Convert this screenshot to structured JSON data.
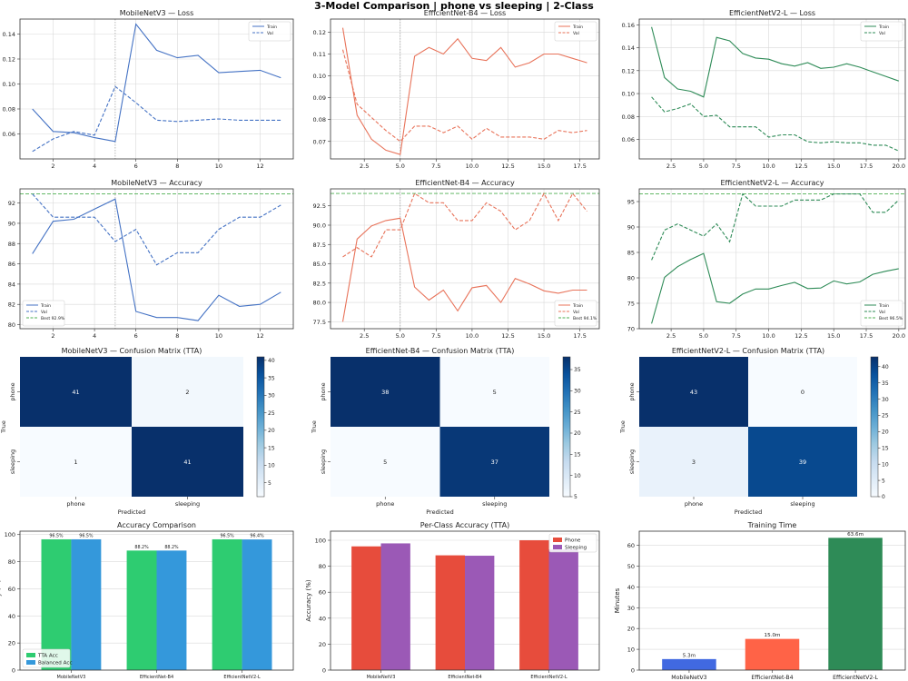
{
  "suptitle": "3-Model Comparison  |  phone vs sleeping  |  2-Class",
  "colors": {
    "mobilenet": "#4472c4",
    "efficientnet_b4": "#e8735a",
    "efficientnetv2_l": "#2e8b57",
    "best_line": "#4caf50",
    "tta_acc": "#2ecc71",
    "balanced_acc": "#3498db",
    "phone": "#e74c3c",
    "sleeping": "#9b59b6",
    "time_mobilenet": "#4169e1",
    "time_b4": "#ff6347",
    "time_v2l": "#2e8b57"
  },
  "chart_data": [
    {
      "id": "mnv3-loss",
      "type": "line",
      "title": "MobileNetV3 — Loss",
      "xlim": [
        0.4,
        13.6
      ],
      "ylim": [
        0.04,
        0.152
      ],
      "xticks": [
        2,
        4,
        6,
        8,
        10,
        12
      ],
      "yticks": [
        0.06,
        0.08,
        0.1,
        0.12,
        0.14
      ],
      "xtick_labels": [
        "2",
        "4",
        "6",
        "8",
        "10",
        "12"
      ],
      "ytick_labels": [
        "0.06",
        "0.08",
        "0.10",
        "0.12",
        "0.14"
      ],
      "vline": 5,
      "legend_position": "upper right",
      "series": [
        {
          "name": "Train",
          "style": "solid",
          "x": [
            1,
            2,
            3,
            4,
            5,
            6,
            7,
            8,
            9,
            10,
            11,
            12,
            13
          ],
          "values": [
            0.08,
            0.062,
            0.061,
            0.057,
            0.054,
            0.148,
            0.127,
            0.121,
            0.123,
            0.109,
            0.11,
            0.111,
            0.105
          ]
        },
        {
          "name": "Val",
          "style": "dashed",
          "x": [
            1,
            2,
            3,
            4,
            5,
            6,
            7,
            8,
            9,
            10,
            11,
            12,
            13
          ],
          "values": [
            0.046,
            0.056,
            0.062,
            0.059,
            0.098,
            0.085,
            0.071,
            0.07,
            0.071,
            0.072,
            0.071,
            0.071,
            0.071
          ]
        }
      ]
    },
    {
      "id": "b4-loss",
      "type": "line",
      "title": "EfficientNet-B4 — Loss",
      "xlim": [
        0.15,
        18.85
      ],
      "ylim": [
        0.062,
        0.126
      ],
      "xticks": [
        2.5,
        5.0,
        7.5,
        10.0,
        12.5,
        15.0,
        17.5
      ],
      "yticks": [
        0.07,
        0.08,
        0.09,
        0.1,
        0.11,
        0.12
      ],
      "xtick_labels": [
        "2.5",
        "5.0",
        "7.5",
        "10.0",
        "12.5",
        "15.0",
        "17.5"
      ],
      "ytick_labels": [
        "0.07",
        "0.08",
        "0.09",
        "0.10",
        "0.11",
        "0.12"
      ],
      "vline": 5,
      "legend_position": "upper right",
      "series": [
        {
          "name": "Train",
          "style": "solid",
          "x": [
            1,
            2,
            3,
            4,
            5,
            6,
            7,
            8,
            9,
            10,
            11,
            12,
            13,
            14,
            15,
            16,
            17,
            18
          ],
          "values": [
            0.122,
            0.082,
            0.071,
            0.066,
            0.064,
            0.109,
            0.113,
            0.11,
            0.117,
            0.108,
            0.107,
            0.113,
            0.104,
            0.106,
            0.11,
            0.11,
            0.108,
            0.106
          ]
        },
        {
          "name": "Val",
          "style": "dashed",
          "x": [
            1,
            2,
            3,
            4,
            5,
            6,
            7,
            8,
            9,
            10,
            11,
            12,
            13,
            14,
            15,
            16,
            17,
            18
          ],
          "values": [
            0.112,
            0.087,
            0.081,
            0.075,
            0.07,
            0.077,
            0.077,
            0.074,
            0.077,
            0.071,
            0.076,
            0.072,
            0.072,
            0.072,
            0.071,
            0.075,
            0.074,
            0.075
          ]
        }
      ]
    },
    {
      "id": "v2l-loss",
      "type": "line",
      "title": "EfficientNetV2-L — Loss",
      "xlim": [
        0.05,
        20.5
      ],
      "ylim": [
        0.043,
        0.165
      ],
      "xticks": [
        2.5,
        5.0,
        7.5,
        10.0,
        12.5,
        15.0,
        17.5,
        20.0
      ],
      "yticks": [
        0.06,
        0.08,
        0.1,
        0.12,
        0.14,
        0.16
      ],
      "xtick_labels": [
        "2.5",
        "5.0",
        "7.5",
        "10.0",
        "12.5",
        "15.0",
        "17.5",
        "20.0"
      ],
      "ytick_labels": [
        "0.06",
        "0.08",
        "0.10",
        "0.12",
        "0.14",
        "0.16"
      ],
      "vline": null,
      "legend_position": "upper right",
      "series": [
        {
          "name": "Train",
          "style": "solid",
          "x": [
            1,
            2,
            3,
            4,
            5,
            6,
            7,
            8,
            9,
            10,
            11,
            12,
            13,
            14,
            15,
            16,
            17,
            18,
            19,
            20
          ],
          "values": [
            0.158,
            0.114,
            0.104,
            0.102,
            0.097,
            0.149,
            0.146,
            0.135,
            0.131,
            0.13,
            0.126,
            0.124,
            0.127,
            0.122,
            0.123,
            0.126,
            0.123,
            0.119,
            0.115,
            0.111
          ]
        },
        {
          "name": "Val",
          "style": "dashed",
          "x": [
            1,
            2,
            3,
            4,
            5,
            6,
            7,
            8,
            9,
            10,
            11,
            12,
            13,
            14,
            15,
            16,
            17,
            18,
            19,
            20
          ],
          "values": [
            0.097,
            0.084,
            0.087,
            0.091,
            0.08,
            0.081,
            0.071,
            0.071,
            0.071,
            0.062,
            0.064,
            0.064,
            0.058,
            0.057,
            0.058,
            0.057,
            0.057,
            0.055,
            0.055,
            0.05
          ]
        }
      ]
    },
    {
      "id": "mnv3-acc",
      "type": "line",
      "title": "MobileNetV3 — Accuracy",
      "xlim": [
        0.4,
        13.6
      ],
      "ylim": [
        79.6,
        93.4
      ],
      "xticks": [
        2,
        4,
        6,
        8,
        10,
        12
      ],
      "yticks": [
        80,
        82,
        84,
        86,
        88,
        90,
        92
      ],
      "xtick_labels": [
        "2",
        "4",
        "6",
        "8",
        "10",
        "12"
      ],
      "ytick_labels": [
        "80",
        "82",
        "84",
        "86",
        "88",
        "90",
        "92"
      ],
      "vline": 5,
      "best": 92.9,
      "legend_position": "lower left",
      "series": [
        {
          "name": "Train",
          "style": "solid",
          "x": [
            1,
            2,
            3,
            4,
            5,
            6,
            7,
            8,
            9,
            10,
            11,
            12,
            13
          ],
          "values": [
            87.0,
            90.2,
            90.4,
            91.4,
            92.4,
            81.3,
            80.7,
            80.7,
            80.4,
            82.9,
            81.8,
            82.0,
            83.2
          ]
        },
        {
          "name": "Val",
          "style": "dashed",
          "x": [
            1,
            2,
            3,
            4,
            5,
            6,
            7,
            8,
            9,
            10,
            11,
            12,
            13
          ],
          "values": [
            92.9,
            90.6,
            90.6,
            90.6,
            88.2,
            89.4,
            85.9,
            87.1,
            87.1,
            89.4,
            90.6,
            90.6,
            91.8
          ]
        },
        {
          "name": "Best 92.9%",
          "style": "best"
        }
      ]
    },
    {
      "id": "b4-acc",
      "type": "line",
      "title": "EfficientNet-B4 — Accuracy",
      "xlim": [
        0.15,
        18.85
      ],
      "ylim": [
        76.6,
        94.7
      ],
      "xticks": [
        2.5,
        5.0,
        7.5,
        10.0,
        12.5,
        15.0,
        17.5
      ],
      "yticks": [
        77.5,
        80.0,
        82.5,
        85.0,
        87.5,
        90.0,
        92.5
      ],
      "xtick_labels": [
        "2.5",
        "5.0",
        "7.5",
        "10.0",
        "12.5",
        "15.0",
        "17.5"
      ],
      "ytick_labels": [
        "77.5",
        "80.0",
        "82.5",
        "85.0",
        "87.5",
        "90.0",
        "92.5"
      ],
      "vline": 5,
      "best": 94.1,
      "legend_position": "lower right",
      "series": [
        {
          "name": "Train",
          "style": "solid",
          "x": [
            1,
            2,
            3,
            4,
            5,
            6,
            7,
            8,
            9,
            10,
            11,
            12,
            13,
            14,
            15,
            16,
            17,
            18
          ],
          "values": [
            77.5,
            88.2,
            89.9,
            90.6,
            90.9,
            82.0,
            80.3,
            81.6,
            78.9,
            81.9,
            82.2,
            80.0,
            83.1,
            82.4,
            81.5,
            81.2,
            81.6,
            81.6
          ]
        },
        {
          "name": "Val",
          "style": "dashed",
          "x": [
            1,
            2,
            3,
            4,
            5,
            6,
            7,
            8,
            9,
            10,
            11,
            12,
            13,
            14,
            15,
            16,
            17,
            18
          ],
          "values": [
            85.9,
            87.1,
            85.9,
            89.4,
            89.4,
            94.1,
            92.9,
            92.9,
            90.6,
            90.6,
            92.9,
            91.8,
            89.4,
            90.6,
            94.1,
            90.6,
            94.1,
            91.8
          ]
        },
        {
          "name": "Best 94.1%",
          "style": "best"
        }
      ]
    },
    {
      "id": "v2l-acc",
      "type": "line",
      "title": "EfficientNetV2-L — Accuracy",
      "xlim": [
        0.05,
        20.5
      ],
      "ylim": [
        70.0,
        97.5
      ],
      "xticks": [
        2.5,
        5.0,
        7.5,
        10.0,
        12.5,
        15.0,
        17.5,
        20.0
      ],
      "yticks": [
        70,
        75,
        80,
        85,
        90,
        95
      ],
      "xtick_labels": [
        "2.5",
        "5.0",
        "7.5",
        "10.0",
        "12.5",
        "15.0",
        "17.5",
        "20.0"
      ],
      "ytick_labels": [
        "70",
        "75",
        "80",
        "85",
        "90",
        "95"
      ],
      "vline": null,
      "best": 96.5,
      "legend_position": "lower right",
      "series": [
        {
          "name": "Train",
          "style": "solid",
          "x": [
            1,
            2,
            3,
            4,
            5,
            6,
            7,
            8,
            9,
            10,
            11,
            12,
            13,
            14,
            15,
            16,
            17,
            18,
            19,
            20
          ],
          "values": [
            71.0,
            80.1,
            82.2,
            83.6,
            84.8,
            75.3,
            75.0,
            76.8,
            77.8,
            77.8,
            78.5,
            79.1,
            77.9,
            78.0,
            79.4,
            78.8,
            79.2,
            80.7,
            81.3,
            81.8
          ]
        },
        {
          "name": "Val",
          "style": "dashed",
          "x": [
            1,
            2,
            3,
            4,
            5,
            6,
            7,
            8,
            9,
            10,
            11,
            12,
            13,
            14,
            15,
            16,
            17,
            18,
            19,
            20
          ],
          "values": [
            83.5,
            89.4,
            90.6,
            89.4,
            88.2,
            90.6,
            87.1,
            96.5,
            94.1,
            94.1,
            94.1,
            95.3,
            95.3,
            95.3,
            96.5,
            96.5,
            96.5,
            92.9,
            92.9,
            95.3
          ]
        },
        {
          "name": "Best 96.5%",
          "style": "best"
        }
      ]
    },
    {
      "id": "mnv3-cm",
      "type": "heatmap",
      "title": "MobileNetV3 — Confusion Matrix (TTA)",
      "xlabel": "Predicted",
      "ylabel": "True",
      "row_labels": [
        "phone",
        "sleeping"
      ],
      "col_labels": [
        "phone",
        "sleeping"
      ],
      "values": [
        [
          41,
          2
        ],
        [
          1,
          41
        ]
      ],
      "vmin": 1,
      "vmax": 41,
      "cbar_ticks": [
        5,
        10,
        15,
        20,
        25,
        30,
        35,
        40
      ],
      "cbar_tick_labels": [
        "5",
        "10",
        "15",
        "20",
        "25",
        "30",
        "35",
        "40"
      ]
    },
    {
      "id": "b4-cm",
      "type": "heatmap",
      "title": "EfficientNet-B4 — Confusion Matrix (TTA)",
      "xlabel": "Predicted",
      "ylabel": "True",
      "row_labels": [
        "phone",
        "sleeping"
      ],
      "col_labels": [
        "phone",
        "sleeping"
      ],
      "values": [
        [
          38,
          5
        ],
        [
          5,
          37
        ]
      ],
      "vmin": 5,
      "vmax": 38,
      "cbar_ticks": [
        5,
        10,
        15,
        20,
        25,
        30,
        35
      ],
      "cbar_tick_labels": [
        "5",
        "10",
        "15",
        "20",
        "25",
        "30",
        "35"
      ]
    },
    {
      "id": "v2l-cm",
      "type": "heatmap",
      "title": "EfficientNetV2-L — Confusion Matrix (TTA)",
      "xlabel": "Predicted",
      "ylabel": "True",
      "row_labels": [
        "phone",
        "sleeping"
      ],
      "col_labels": [
        "phone",
        "sleeping"
      ],
      "values": [
        [
          43,
          0
        ],
        [
          3,
          39
        ]
      ],
      "vmin": 0,
      "vmax": 43,
      "cbar_ticks": [
        0,
        5,
        10,
        15,
        20,
        25,
        30,
        35,
        40
      ],
      "cbar_tick_labels": [
        "0",
        "5",
        "10",
        "15",
        "20",
        "25",
        "30",
        "35",
        "40"
      ]
    },
    {
      "id": "acc-comp",
      "type": "bar",
      "title": "Accuracy Comparison",
      "ylabel": "Accuracy (%)",
      "ylim": [
        0,
        102.5
      ],
      "yticks": [
        0,
        20,
        40,
        60,
        80,
        100
      ],
      "ytick_labels": [
        "0",
        "20",
        "40",
        "60",
        "80",
        "100"
      ],
      "categories": [
        "MobileNetV3",
        "EfficientNet-B4",
        "EfficientNetV2-L"
      ],
      "show_value_labels": true,
      "legend_position": "lower left",
      "series": [
        {
          "name": "TTA Acc",
          "values": [
            96.5,
            88.2,
            96.5
          ],
          "labels": [
            "96.5%",
            "88.2%",
            "96.5%"
          ],
          "color_key": "tta_acc"
        },
        {
          "name": "Balanced Acc",
          "values": [
            96.5,
            88.2,
            96.4
          ],
          "labels": [
            "96.5%",
            "88.2%",
            "96.4%"
          ],
          "color_key": "balanced_acc"
        }
      ]
    },
    {
      "id": "per-class",
      "type": "bar",
      "title": "Per-Class Accuracy (TTA)",
      "ylabel": "Accuracy (%)",
      "ylim": [
        0,
        107
      ],
      "yticks": [
        0,
        20,
        40,
        60,
        80,
        100
      ],
      "ytick_labels": [
        "0",
        "20",
        "40",
        "60",
        "80",
        "100"
      ],
      "categories": [
        "MobileNetV3",
        "EfficientNet-B4",
        "EfficientNetV2-L"
      ],
      "show_value_labels": false,
      "legend_position": "upper right",
      "series": [
        {
          "name": "Phone",
          "values": [
            95.3,
            88.4,
            100.0
          ],
          "color_key": "phone"
        },
        {
          "name": "Sleeping",
          "values": [
            97.6,
            88.1,
            92.9
          ],
          "color_key": "sleeping"
        }
      ]
    },
    {
      "id": "train-time",
      "type": "bar",
      "title": "Training Time",
      "ylabel": "Minutes",
      "ylim": [
        0,
        66.8
      ],
      "yticks": [
        0,
        10,
        20,
        30,
        40,
        50,
        60
      ],
      "ytick_labels": [
        "0",
        "10",
        "20",
        "30",
        "40",
        "50",
        "60"
      ],
      "categories": [
        "MobileNetV3",
        "EfficientNet-B4",
        "EfficientNetV2-L"
      ],
      "values": [
        5.3,
        15.0,
        63.6
      ],
      "labels": [
        "5.3m",
        "15.0m",
        "63.6m"
      ],
      "color_keys": [
        "time_mobilenet",
        "time_b4",
        "time_v2l"
      ]
    }
  ]
}
